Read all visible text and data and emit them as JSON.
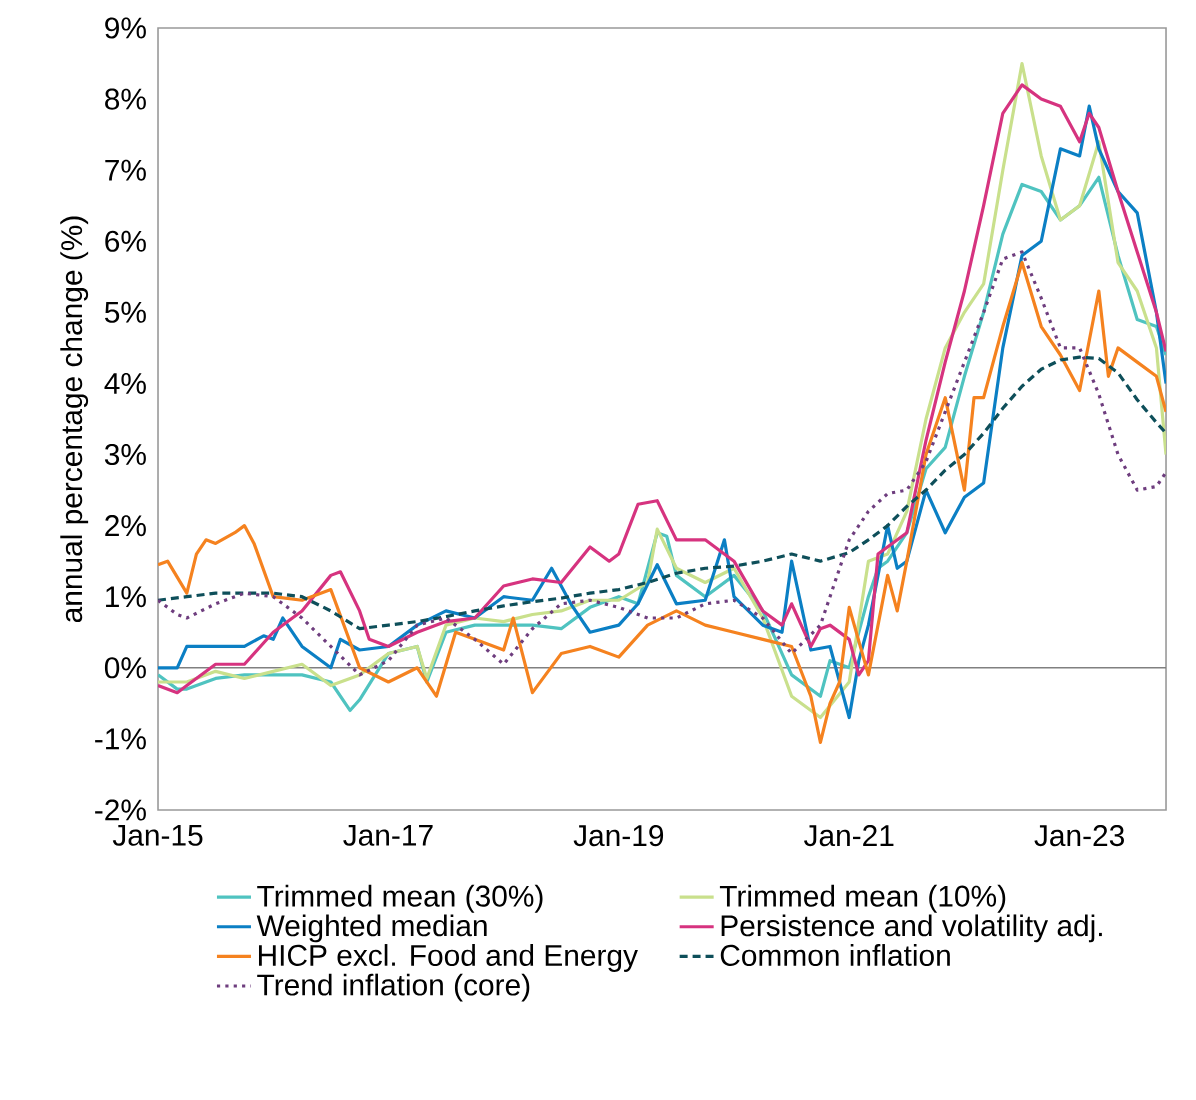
{
  "chart_data": {
    "type": "line",
    "ylabel": "annual percentage change (%)",
    "xlim": [
      "2015-01",
      "2023-10"
    ],
    "ylim": [
      -2,
      9
    ],
    "xticks": [
      {
        "value": "2015-01",
        "label": "Jan-15"
      },
      {
        "value": "2017-01",
        "label": "Jan-17"
      },
      {
        "value": "2019-01",
        "label": "Jan-19"
      },
      {
        "value": "2021-01",
        "label": "Jan-21"
      },
      {
        "value": "2023-01",
        "label": "Jan-23"
      }
    ],
    "yticks": [
      {
        "value": -2,
        "label": "-2%"
      },
      {
        "value": -1,
        "label": "-1%"
      },
      {
        "value": 0,
        "label": "0%"
      },
      {
        "value": 1,
        "label": "1%"
      },
      {
        "value": 2,
        "label": "2%"
      },
      {
        "value": 3,
        "label": "3%"
      },
      {
        "value": 4,
        "label": "4%"
      },
      {
        "value": 5,
        "label": "5%"
      },
      {
        "value": 6,
        "label": "6%"
      },
      {
        "value": 7,
        "label": "7%"
      },
      {
        "value": 8,
        "label": "8%"
      },
      {
        "value": 9,
        "label": "9%"
      }
    ],
    "grid": false,
    "legend": "bottom",
    "marker": "none",
    "ref_lines": [
      {
        "axis": "y",
        "value": 0,
        "color": "#808080"
      }
    ],
    "series": [
      {
        "name": "Trimmed mean (30%)",
        "color": "#4fc3c0",
        "line_style": "solid",
        "x": [
          "2015-01",
          "2015-03",
          "2015-04",
          "2015-07",
          "2015-10",
          "2016-01",
          "2016-04",
          "2016-07",
          "2016-09",
          "2016-10",
          "2017-01",
          "2017-04",
          "2017-05",
          "2017-07",
          "2017-10",
          "2018-01",
          "2018-04",
          "2018-07",
          "2018-10",
          "2019-01",
          "2019-03",
          "2019-05",
          "2019-06",
          "2019-07",
          "2019-10",
          "2020-01",
          "2020-04",
          "2020-07",
          "2020-10",
          "2020-11",
          "2021-01",
          "2021-03",
          "2021-04",
          "2021-05",
          "2021-07",
          "2021-09",
          "2021-11",
          "2022-01",
          "2022-03",
          "2022-05",
          "2022-07",
          "2022-09",
          "2022-11",
          "2023-01",
          "2023-03",
          "2023-05",
          "2023-07",
          "2023-09",
          "2023-10"
        ],
        "values": [
          -0.1,
          -0.3,
          -0.3,
          -0.15,
          -0.1,
          -0.1,
          -0.1,
          -0.2,
          -0.6,
          -0.45,
          0.2,
          0.3,
          -0.2,
          0.5,
          0.6,
          0.6,
          0.6,
          0.55,
          0.85,
          1.0,
          0.9,
          1.9,
          1.85,
          1.3,
          1.0,
          1.3,
          0.8,
          -0.1,
          -0.4,
          0.1,
          0.0,
          1.0,
          1.4,
          1.5,
          1.9,
          2.8,
          3.1,
          4.1,
          5.0,
          6.1,
          6.8,
          6.7,
          6.3,
          6.5,
          6.9,
          5.8,
          4.9,
          4.8,
          4.4
        ]
      },
      {
        "name": "Trimmed mean (10%)",
        "color": "#c9e08c",
        "line_style": "solid",
        "x": [
          "2015-01",
          "2015-04",
          "2015-07",
          "2015-10",
          "2016-01",
          "2016-04",
          "2016-07",
          "2016-10",
          "2017-01",
          "2017-04",
          "2017-05",
          "2017-07",
          "2017-10",
          "2018-01",
          "2018-04",
          "2018-07",
          "2018-10",
          "2019-01",
          "2019-04",
          "2019-05",
          "2019-07",
          "2019-10",
          "2020-01",
          "2020-04",
          "2020-07",
          "2020-10",
          "2021-01",
          "2021-03",
          "2021-05",
          "2021-07",
          "2021-09",
          "2021-11",
          "2022-01",
          "2022-03",
          "2022-05",
          "2022-07",
          "2022-09",
          "2022-11",
          "2023-01",
          "2023-03",
          "2023-05",
          "2023-07",
          "2023-09",
          "2023-10"
        ],
        "values": [
          -0.2,
          -0.2,
          -0.05,
          -0.15,
          -0.05,
          0.05,
          -0.25,
          -0.1,
          0.2,
          0.3,
          -0.15,
          0.6,
          0.7,
          0.65,
          0.75,
          0.8,
          0.95,
          0.95,
          1.2,
          1.95,
          1.4,
          1.2,
          1.4,
          0.7,
          -0.4,
          -0.7,
          -0.2,
          1.5,
          1.6,
          2.2,
          3.5,
          4.5,
          5.0,
          5.4,
          7.0,
          8.5,
          7.2,
          6.3,
          6.5,
          7.4,
          5.7,
          5.3,
          4.5,
          3.0
        ]
      },
      {
        "name": "Weighted median",
        "color": "#0b7fc4",
        "line_style": "solid",
        "x": [
          "2015-01",
          "2015-03",
          "2015-04",
          "2015-07",
          "2015-10",
          "2015-12",
          "2016-01",
          "2016-02",
          "2016-04",
          "2016-07",
          "2016-08",
          "2016-10",
          "2017-01",
          "2017-04",
          "2017-07",
          "2017-10",
          "2018-01",
          "2018-04",
          "2018-06",
          "2018-08",
          "2018-10",
          "2019-01",
          "2019-03",
          "2019-05",
          "2019-07",
          "2019-10",
          "2019-12",
          "2020-01",
          "2020-04",
          "2020-06",
          "2020-07",
          "2020-09",
          "2020-11",
          "2021-01",
          "2021-02",
          "2021-03",
          "2021-05",
          "2021-06",
          "2021-07",
          "2021-09",
          "2021-11",
          "2022-01",
          "2022-03",
          "2022-05",
          "2022-07",
          "2022-09",
          "2022-11",
          "2023-01",
          "2023-02",
          "2023-03",
          "2023-05",
          "2023-07",
          "2023-09",
          "2023-10"
        ],
        "values": [
          0.0,
          0.0,
          0.3,
          0.3,
          0.3,
          0.45,
          0.4,
          0.7,
          0.3,
          0.0,
          0.4,
          0.25,
          0.3,
          0.6,
          0.8,
          0.7,
          1.0,
          0.95,
          1.4,
          0.9,
          0.5,
          0.6,
          0.9,
          1.45,
          0.9,
          0.95,
          1.8,
          1.0,
          0.6,
          0.5,
          1.5,
          0.25,
          0.3,
          -0.7,
          0.1,
          0.6,
          2.0,
          1.4,
          1.5,
          2.5,
          1.9,
          2.4,
          2.6,
          4.5,
          5.8,
          6.0,
          7.3,
          7.2,
          7.9,
          7.3,
          6.7,
          6.4,
          5.0,
          4.0
        ]
      },
      {
        "name": "Persistence and volatility adj.",
        "color": "#d6337f",
        "line_style": "solid",
        "x": [
          "2015-01",
          "2015-03",
          "2015-04",
          "2015-07",
          "2015-10",
          "2016-01",
          "2016-03",
          "2016-04",
          "2016-07",
          "2016-08",
          "2016-10",
          "2016-11",
          "2017-01",
          "2017-04",
          "2017-07",
          "2017-10",
          "2018-01",
          "2018-04",
          "2018-07",
          "2018-10",
          "2018-12",
          "2019-01",
          "2019-03",
          "2019-05",
          "2019-07",
          "2019-10",
          "2020-01",
          "2020-04",
          "2020-06",
          "2020-07",
          "2020-09",
          "2020-10",
          "2020-11",
          "2021-01",
          "2021-02",
          "2021-03",
          "2021-04",
          "2021-05",
          "2021-07",
          "2021-09",
          "2021-11",
          "2022-01",
          "2022-03",
          "2022-05",
          "2022-07",
          "2022-09",
          "2022-11",
          "2023-01",
          "2023-02",
          "2023-03",
          "2023-05",
          "2023-07",
          "2023-09",
          "2023-10"
        ],
        "values": [
          -0.25,
          -0.35,
          -0.25,
          0.05,
          0.05,
          0.5,
          0.7,
          0.8,
          1.3,
          1.35,
          0.8,
          0.4,
          0.3,
          0.5,
          0.65,
          0.7,
          1.15,
          1.25,
          1.2,
          1.7,
          1.5,
          1.6,
          2.3,
          2.35,
          1.8,
          1.8,
          1.5,
          0.8,
          0.6,
          0.9,
          0.3,
          0.55,
          0.6,
          0.4,
          -0.1,
          0.1,
          1.6,
          1.7,
          1.9,
          3.2,
          4.3,
          5.3,
          6.5,
          7.8,
          8.2,
          8.0,
          7.9,
          7.4,
          7.8,
          7.6,
          6.7,
          5.85,
          5.0,
          4.45
        ]
      },
      {
        "name": "HICP excl. Food and Energy",
        "color": "#f5821f",
        "line_style": "solid",
        "x": [
          "2015-01",
          "2015-02",
          "2015-04",
          "2015-05",
          "2015-06",
          "2015-07",
          "2015-09",
          "2015-10",
          "2015-11",
          "2016-01",
          "2016-04",
          "2016-07",
          "2016-10",
          "2017-01",
          "2017-04",
          "2017-06",
          "2017-08",
          "2017-10",
          "2018-01",
          "2018-02",
          "2018-04",
          "2018-07",
          "2018-10",
          "2019-01",
          "2019-04",
          "2019-07",
          "2019-10",
          "2020-01",
          "2020-04",
          "2020-07",
          "2020-09",
          "2020-10",
          "2020-11",
          "2020-12",
          "2021-01",
          "2021-03",
          "2021-05",
          "2021-06",
          "2021-07",
          "2021-09",
          "2021-11",
          "2022-01",
          "2022-02",
          "2022-03",
          "2022-05",
          "2022-07",
          "2022-09",
          "2022-11",
          "2023-01",
          "2023-03",
          "2023-04",
          "2023-05",
          "2023-07",
          "2023-09",
          "2023-10"
        ],
        "values": [
          1.45,
          1.5,
          1.05,
          1.6,
          1.8,
          1.75,
          1.9,
          2.0,
          1.75,
          1.0,
          0.95,
          1.1,
          0.0,
          -0.2,
          0.0,
          -0.4,
          0.5,
          0.4,
          0.25,
          0.7,
          -0.35,
          0.2,
          0.3,
          0.15,
          0.6,
          0.8,
          0.6,
          0.5,
          0.4,
          0.3,
          -0.4,
          -1.05,
          -0.5,
          -0.2,
          0.85,
          -0.1,
          1.3,
          0.8,
          1.5,
          3.0,
          3.8,
          2.5,
          3.8,
          3.8,
          4.8,
          5.7,
          4.8,
          4.4,
          3.9,
          5.3,
          4.1,
          4.5,
          4.3,
          4.1,
          3.6
        ]
      },
      {
        "name": "Common inflation",
        "color": "#0e4f5a",
        "line_style": "dashed",
        "x": [
          "2015-01",
          "2015-04",
          "2015-07",
          "2015-10",
          "2016-01",
          "2016-04",
          "2016-07",
          "2016-10",
          "2017-01",
          "2017-04",
          "2017-07",
          "2017-10",
          "2018-01",
          "2018-04",
          "2018-07",
          "2018-10",
          "2019-01",
          "2019-04",
          "2019-07",
          "2019-10",
          "2020-01",
          "2020-04",
          "2020-07",
          "2020-10",
          "2021-01",
          "2021-03",
          "2021-05",
          "2021-07",
          "2021-09",
          "2021-11",
          "2022-01",
          "2022-03",
          "2022-05",
          "2022-07",
          "2022-09",
          "2022-11",
          "2023-01",
          "2023-03",
          "2023-05",
          "2023-07",
          "2023-09",
          "2023-10"
        ],
        "values": [
          0.95,
          1.0,
          1.05,
          1.05,
          1.05,
          1.0,
          0.8,
          0.55,
          0.6,
          0.65,
          0.72,
          0.8,
          0.87,
          0.93,
          0.98,
          1.05,
          1.1,
          1.2,
          1.33,
          1.4,
          1.43,
          1.5,
          1.6,
          1.5,
          1.62,
          1.8,
          2.0,
          2.27,
          2.5,
          2.78,
          3.0,
          3.3,
          3.65,
          3.96,
          4.2,
          4.33,
          4.37,
          4.35,
          4.15,
          3.77,
          3.45,
          3.3
        ]
      },
      {
        "name": "Trend inflation (core)",
        "color": "#6e3d7e",
        "line_style": "dotted",
        "x": [
          "2015-01",
          "2015-03",
          "2015-04",
          "2015-07",
          "2015-10",
          "2016-01",
          "2016-04",
          "2016-07",
          "2016-10",
          "2017-01",
          "2017-04",
          "2017-07",
          "2017-10",
          "2018-01",
          "2018-04",
          "2018-07",
          "2018-10",
          "2019-01",
          "2019-04",
          "2019-07",
          "2019-10",
          "2020-01",
          "2020-04",
          "2020-07",
          "2020-10",
          "2021-01",
          "2021-03",
          "2021-05",
          "2021-07",
          "2021-09",
          "2021-11",
          "2022-01",
          "2022-03",
          "2022-05",
          "2022-07",
          "2022-09",
          "2022-11",
          "2023-01",
          "2023-03",
          "2023-05",
          "2023-07",
          "2023-09",
          "2023-10"
        ],
        "values": [
          0.95,
          0.75,
          0.7,
          0.9,
          1.05,
          1.0,
          0.7,
          0.3,
          -0.1,
          0.1,
          0.6,
          0.7,
          0.4,
          0.05,
          0.55,
          0.9,
          0.95,
          0.85,
          0.7,
          0.7,
          0.9,
          0.95,
          0.7,
          0.2,
          0.6,
          1.8,
          2.2,
          2.45,
          2.5,
          2.9,
          3.6,
          4.3,
          5.0,
          5.75,
          5.85,
          5.2,
          4.5,
          4.5,
          3.85,
          3.0,
          2.5,
          2.55,
          2.75
        ]
      }
    ]
  }
}
